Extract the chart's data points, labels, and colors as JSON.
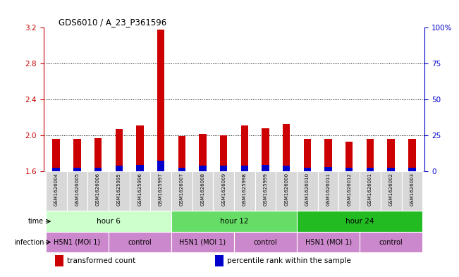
{
  "title": "GDS6010 / A_23_P361596",
  "samples": [
    "GSM1626004",
    "GSM1626005",
    "GSM1626006",
    "GSM1625995",
    "GSM1625996",
    "GSM1625997",
    "GSM1626007",
    "GSM1626008",
    "GSM1626009",
    "GSM1625998",
    "GSM1625999",
    "GSM1626000",
    "GSM1626010",
    "GSM1626011",
    "GSM1626012",
    "GSM1626001",
    "GSM1626002",
    "GSM1626003"
  ],
  "red_values": [
    1.96,
    1.96,
    1.97,
    2.07,
    2.11,
    3.18,
    1.99,
    2.02,
    2.0,
    2.11,
    2.08,
    2.13,
    1.96,
    1.96,
    1.93,
    1.96,
    1.96,
    1.96
  ],
  "blue_values": [
    1.64,
    1.64,
    1.64,
    1.66,
    1.67,
    1.72,
    1.64,
    1.66,
    1.66,
    1.66,
    1.67,
    1.66,
    1.64,
    1.65,
    1.64,
    1.64,
    1.64,
    1.64
  ],
  "ylim_left": [
    1.6,
    3.2
  ],
  "yticks_left": [
    1.6,
    2.0,
    2.4,
    2.8,
    3.2
  ],
  "ylim_right": [
    0,
    100
  ],
  "yticks_right": [
    0,
    25,
    50,
    75,
    100
  ],
  "ytick_labels_right": [
    "0",
    "25",
    "50",
    "75",
    "100%"
  ],
  "bar_width": 0.35,
  "red_color": "#cc0000",
  "blue_color": "#0000cc",
  "grid_color": "#000000",
  "grid_dotted_levels": [
    2.0,
    2.4,
    2.8
  ],
  "background_color": "#ffffff",
  "left_axis_color": "#cc0000",
  "right_axis_color": "#0000cc",
  "sample_label_bg": "#d8d8d8",
  "time_colors": [
    "#ccffcc",
    "#66dd66",
    "#22bb22"
  ],
  "time_groups": [
    {
      "label": "hour 6",
      "start": 0,
      "end": 6
    },
    {
      "label": "hour 12",
      "start": 6,
      "end": 12
    },
    {
      "label": "hour 24",
      "start": 12,
      "end": 18
    }
  ],
  "infection_color": "#cc88cc",
  "infection_layout": [
    {
      "label": "H5N1 (MOI 1)",
      "start": 0,
      "end": 3
    },
    {
      "label": "control",
      "start": 3,
      "end": 6
    },
    {
      "label": "H5N1 (MOI 1)",
      "start": 6,
      "end": 9
    },
    {
      "label": "control",
      "start": 9,
      "end": 12
    },
    {
      "label": "H5N1 (MOI 1)",
      "start": 12,
      "end": 15
    },
    {
      "label": "control",
      "start": 15,
      "end": 18
    }
  ],
  "legend_items": [
    {
      "label": "transformed count",
      "color": "#cc0000"
    },
    {
      "label": "percentile rank within the sample",
      "color": "#0000cc"
    }
  ]
}
